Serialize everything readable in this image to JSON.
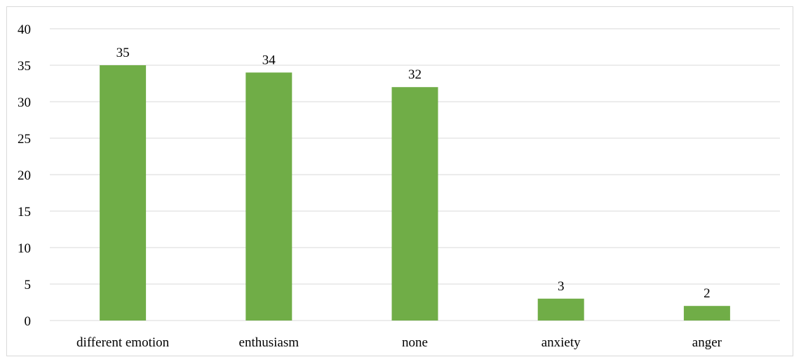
{
  "chart_data": {
    "type": "bar",
    "categories": [
      "different emotion",
      "enthusiasm",
      "none",
      "anxiety",
      "anger"
    ],
    "values": [
      35,
      34,
      32,
      3,
      2
    ],
    "data_labels": [
      "35",
      "34",
      "32",
      "3",
      "2"
    ],
    "yticks": [
      "0",
      "5",
      "10",
      "15",
      "20",
      "25",
      "30",
      "35",
      "40"
    ],
    "ylim": [
      0,
      40
    ],
    "title": "",
    "xlabel": "",
    "ylabel": "",
    "grid": true,
    "legend": "none",
    "bar_color": "#70ad47",
    "grid_color": "#d9d9d9"
  }
}
